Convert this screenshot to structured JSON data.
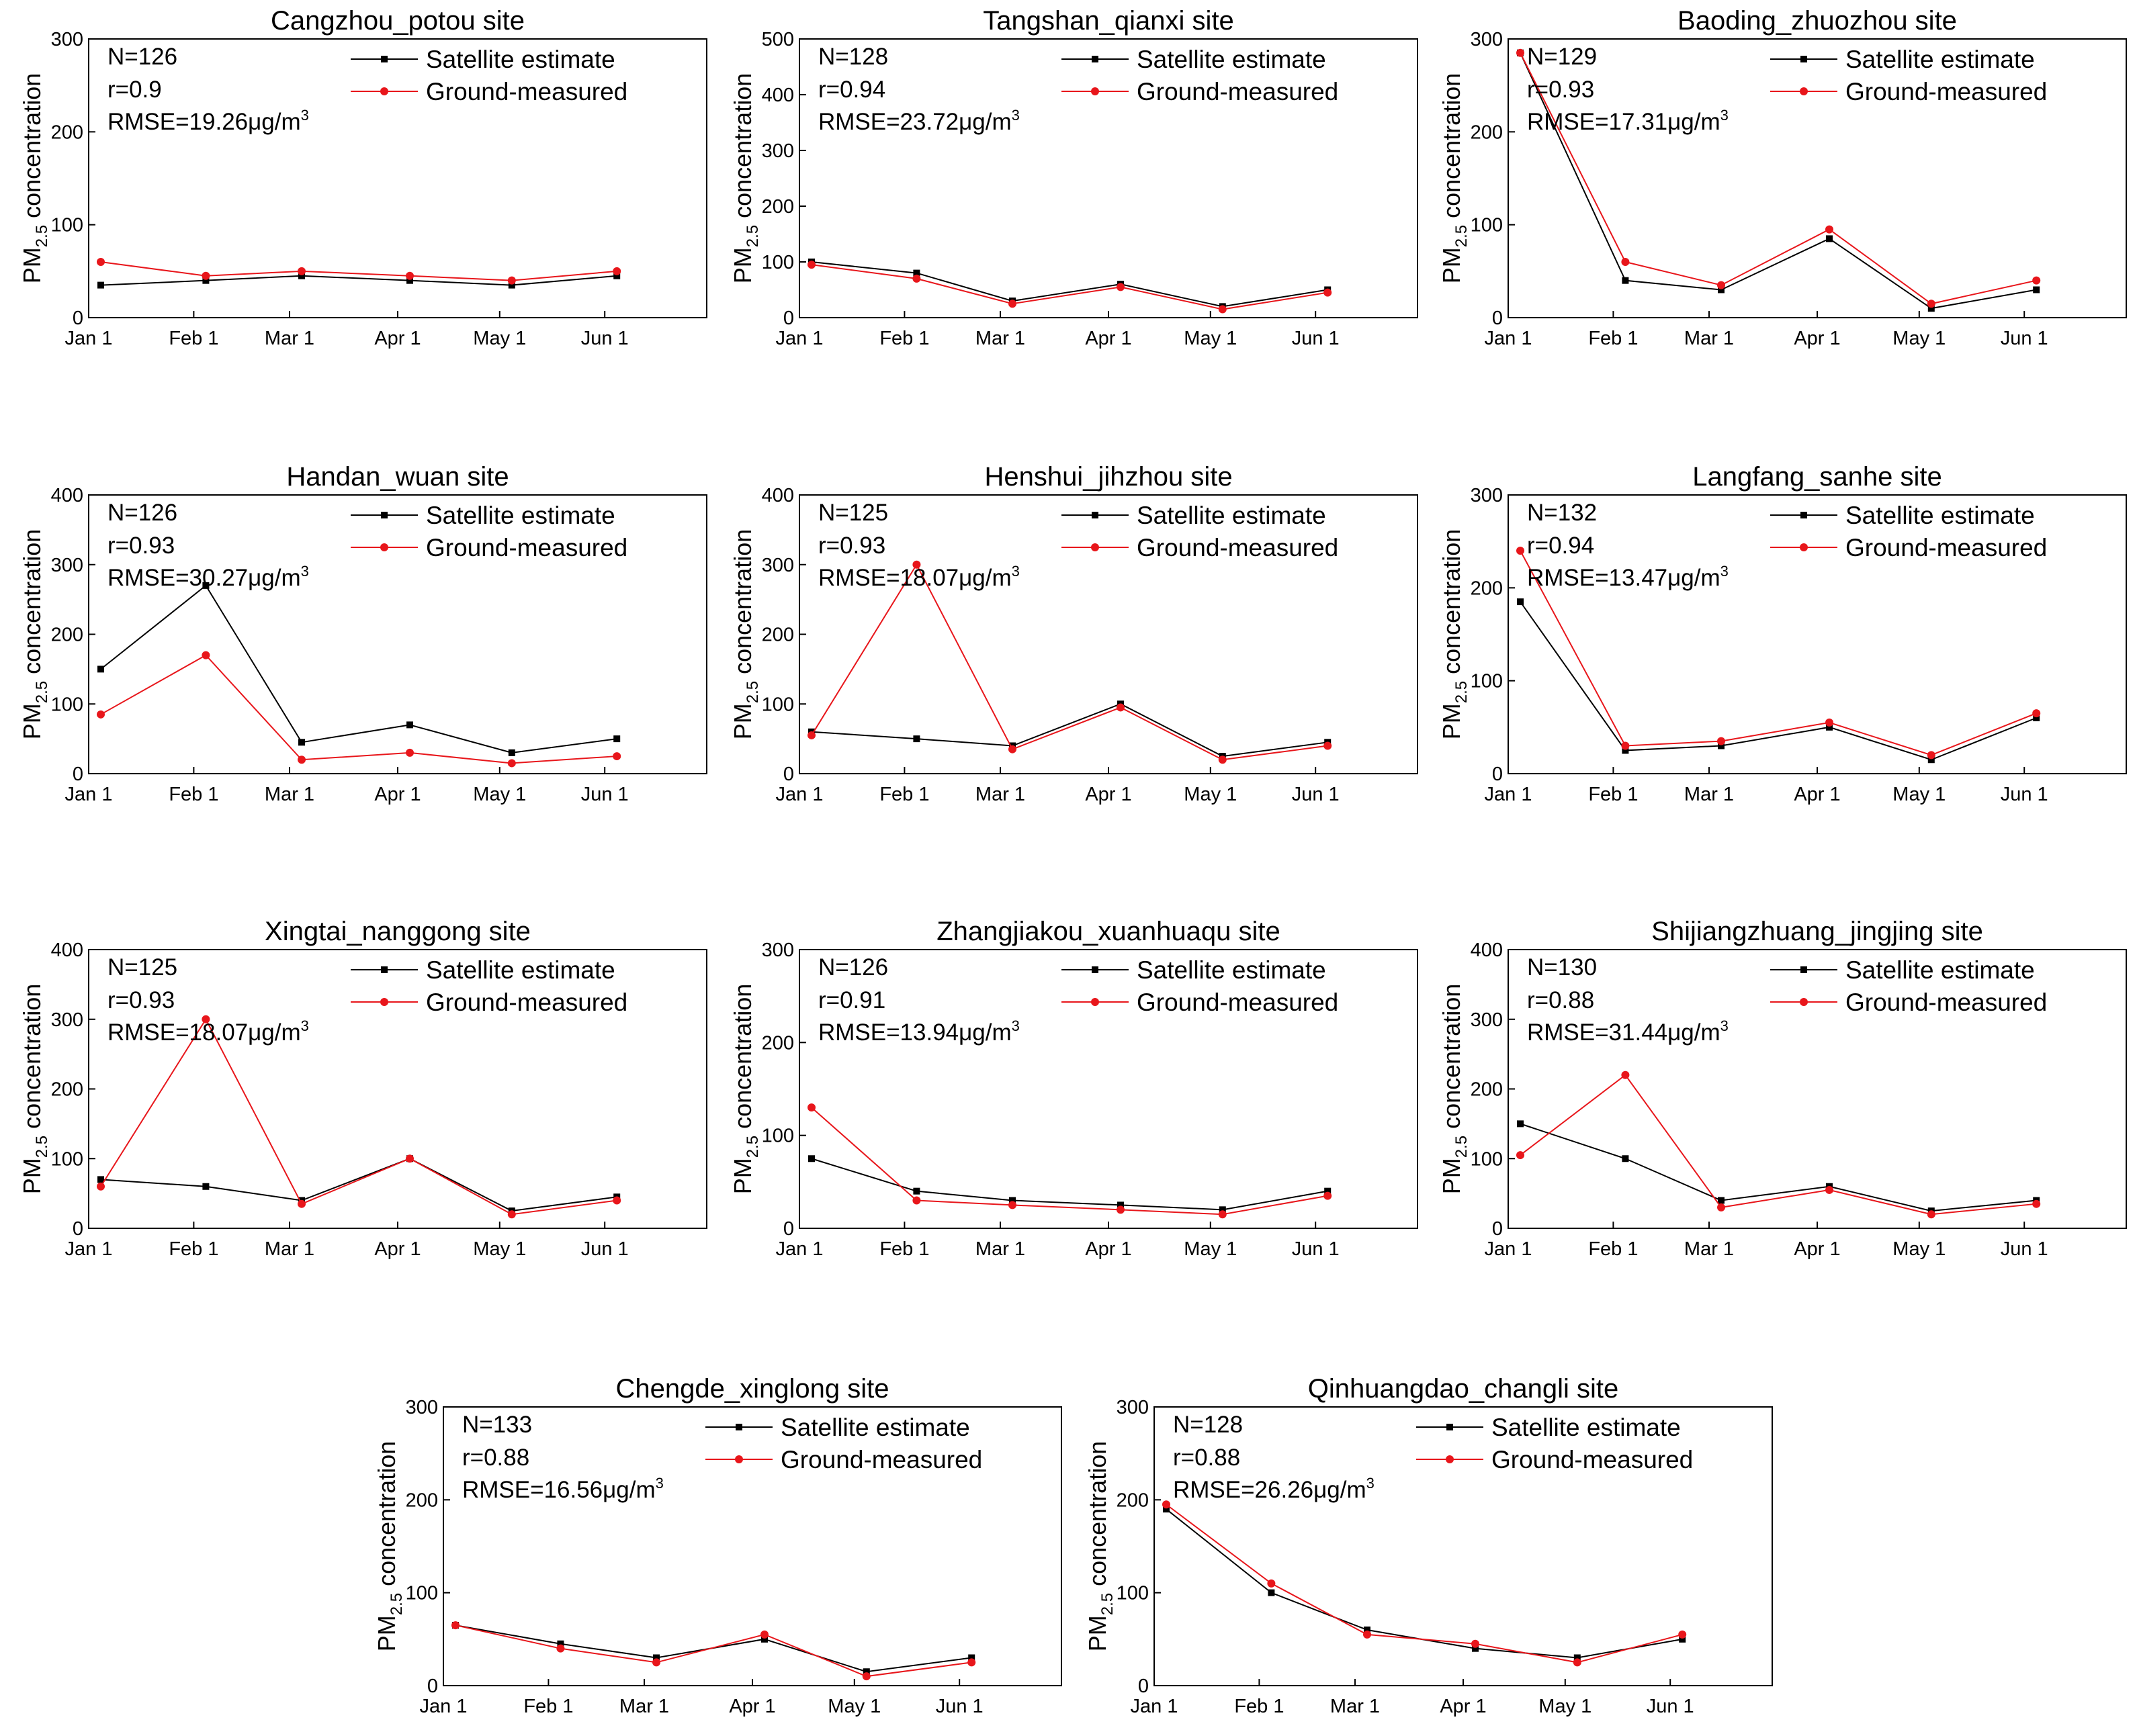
{
  "figure": {
    "ylabel_main": "PM",
    "ylabel_sub": "2.5",
    "ylabel_rest": " concentration",
    "x_ticks": [
      "Jan 1",
      "Feb 1",
      "Mar 1",
      "Apr 1",
      "May 1",
      "Jun 1"
    ],
    "legend": [
      "Satellite estimate",
      "Ground-measured"
    ],
    "colors": {
      "satellite": "#000000",
      "ground": "#e8161b"
    }
  },
  "chart_data": [
    {
      "type": "line",
      "title": "Cangzhou_potou site",
      "ylim": [
        0,
        300
      ],
      "yticks": [
        0,
        100,
        200,
        300
      ],
      "n_label": "N=126",
      "r_label": "r=0.9",
      "rmse_label": "RMSE=19.26μg/m",
      "rmse_sup": "3",
      "x": [
        "Jan 1",
        "Feb 1",
        "Mar 1",
        "Apr 1",
        "May 1",
        "Jun 1"
      ],
      "series": [
        {
          "name": "Satellite estimate",
          "values": [
            35,
            40,
            45,
            40,
            35,
            45
          ]
        },
        {
          "name": "Ground-measured",
          "values": [
            60,
            45,
            50,
            45,
            40,
            50
          ]
        }
      ]
    },
    {
      "type": "line",
      "title": "Tangshan_qianxi site",
      "ylim": [
        0,
        500
      ],
      "yticks": [
        0,
        100,
        200,
        300,
        400,
        500
      ],
      "n_label": "N=128",
      "r_label": "r=0.94",
      "rmse_label": "RMSE=23.72μg/m",
      "rmse_sup": "3",
      "x": [
        "Jan 1",
        "Feb 1",
        "Mar 1",
        "Apr 1",
        "May 1",
        "Jun 1"
      ],
      "series": [
        {
          "name": "Satellite estimate",
          "values": [
            100,
            80,
            30,
            60,
            20,
            50
          ]
        },
        {
          "name": "Ground-measured",
          "values": [
            95,
            70,
            25,
            55,
            15,
            45
          ]
        }
      ]
    },
    {
      "type": "line",
      "title": "Baoding_zhuozhou site",
      "ylim": [
        0,
        300
      ],
      "yticks": [
        0,
        100,
        200,
        300
      ],
      "n_label": "N=129",
      "r_label": "r=0.93",
      "rmse_label": "RMSE=17.31μg/m",
      "rmse_sup": "3",
      "x": [
        "Jan 1",
        "Feb 1",
        "Mar 1",
        "Apr 1",
        "May 1",
        "Jun 1"
      ],
      "series": [
        {
          "name": "Satellite estimate",
          "values": [
            285,
            40,
            30,
            85,
            10,
            30
          ]
        },
        {
          "name": "Ground-measured",
          "values": [
            285,
            60,
            35,
            95,
            15,
            40
          ]
        }
      ]
    },
    {
      "type": "line",
      "title": "Handan_wuan site",
      "ylim": [
        0,
        400
      ],
      "yticks": [
        0,
        100,
        200,
        300,
        400
      ],
      "n_label": "N=126",
      "r_label": "r=0.93",
      "rmse_label": "RMSE=30.27μg/m",
      "rmse_sup": "3",
      "x": [
        "Jan 1",
        "Feb 1",
        "Mar 1",
        "Apr 1",
        "May 1",
        "Jun 1"
      ],
      "series": [
        {
          "name": "Satellite estimate",
          "values": [
            150,
            270,
            45,
            70,
            30,
            50
          ]
        },
        {
          "name": "Ground-measured",
          "values": [
            85,
            170,
            20,
            30,
            15,
            25
          ]
        }
      ]
    },
    {
      "type": "line",
      "title": "Henshui_jihzhou site",
      "ylim": [
        0,
        400
      ],
      "yticks": [
        0,
        100,
        200,
        300,
        400
      ],
      "n_label": "N=125",
      "r_label": "r=0.93",
      "rmse_label": "RMSE=18.07μg/m",
      "rmse_sup": "3",
      "x": [
        "Jan 1",
        "Feb 1",
        "Mar 1",
        "Apr 1",
        "May 1",
        "Jun 1"
      ],
      "series": [
        {
          "name": "Satellite estimate",
          "values": [
            60,
            50,
            40,
            100,
            25,
            45
          ]
        },
        {
          "name": "Ground-measured",
          "values": [
            55,
            300,
            35,
            95,
            20,
            40
          ]
        }
      ]
    },
    {
      "type": "line",
      "title": "Langfang_sanhe site",
      "ylim": [
        0,
        300
      ],
      "yticks": [
        0,
        100,
        200,
        300
      ],
      "n_label": "N=132",
      "r_label": "r=0.94",
      "rmse_label": "RMSE=13.47μg/m",
      "rmse_sup": "3",
      "x": [
        "Jan 1",
        "Feb 1",
        "Mar 1",
        "Apr 1",
        "May 1",
        "Jun 1"
      ],
      "series": [
        {
          "name": "Satellite estimate",
          "values": [
            185,
            25,
            30,
            50,
            15,
            60
          ]
        },
        {
          "name": "Ground-measured",
          "values": [
            240,
            30,
            35,
            55,
            20,
            65
          ]
        }
      ]
    },
    {
      "type": "line",
      "title": "Xingtai_nanggong site",
      "ylim": [
        0,
        400
      ],
      "yticks": [
        0,
        100,
        200,
        300,
        400
      ],
      "n_label": "N=125",
      "r_label": "r=0.93",
      "rmse_label": "RMSE=18.07μg/m",
      "rmse_sup": "3",
      "x": [
        "Jan 1",
        "Feb 1",
        "Mar 1",
        "Apr 1",
        "May 1",
        "Jun 1"
      ],
      "series": [
        {
          "name": "Satellite estimate",
          "values": [
            70,
            60,
            40,
            100,
            25,
            45
          ]
        },
        {
          "name": "Ground-measured",
          "values": [
            60,
            300,
            35,
            100,
            20,
            40
          ]
        }
      ]
    },
    {
      "type": "line",
      "title": "Zhangjiakou_xuanhuaqu site",
      "ylim": [
        0,
        300
      ],
      "yticks": [
        0,
        100,
        200,
        300
      ],
      "n_label": "N=126",
      "r_label": "r=0.91",
      "rmse_label": "RMSE=13.94μg/m",
      "rmse_sup": "3",
      "x": [
        "Jan 1",
        "Feb 1",
        "Mar 1",
        "Apr 1",
        "May 1",
        "Jun 1"
      ],
      "series": [
        {
          "name": "Satellite estimate",
          "values": [
            75,
            40,
            30,
            25,
            20,
            40
          ]
        },
        {
          "name": "Ground-measured",
          "values": [
            130,
            30,
            25,
            20,
            15,
            35
          ]
        }
      ]
    },
    {
      "type": "line",
      "title": "Shijiangzhuang_jingjing site",
      "ylim": [
        0,
        400
      ],
      "yticks": [
        0,
        100,
        200,
        300,
        400
      ],
      "n_label": "N=130",
      "r_label": "r=0.88",
      "rmse_label": "RMSE=31.44μg/m",
      "rmse_sup": "3",
      "x": [
        "Jan 1",
        "Feb 1",
        "Mar 1",
        "Apr 1",
        "May 1",
        "Jun 1"
      ],
      "series": [
        {
          "name": "Satellite estimate",
          "values": [
            150,
            100,
            40,
            60,
            25,
            40
          ]
        },
        {
          "name": "Ground-measured",
          "values": [
            105,
            220,
            30,
            55,
            20,
            35
          ]
        }
      ]
    },
    {
      "type": "line",
      "title": "Chengde_xinglong site",
      "ylim": [
        0,
        300
      ],
      "yticks": [
        0,
        100,
        200,
        300
      ],
      "n_label": "N=133",
      "r_label": "r=0.88",
      "rmse_label": "RMSE=16.56μg/m",
      "rmse_sup": "3",
      "x": [
        "Jan 1",
        "Feb 1",
        "Mar 1",
        "Apr 1",
        "May 1",
        "Jun 1"
      ],
      "series": [
        {
          "name": "Satellite estimate",
          "values": [
            65,
            45,
            30,
            50,
            15,
            30
          ]
        },
        {
          "name": "Ground-measured",
          "values": [
            65,
            40,
            25,
            55,
            10,
            25
          ]
        }
      ]
    },
    {
      "type": "line",
      "title": "Qinhuangdao_changli site",
      "ylim": [
        0,
        300
      ],
      "yticks": [
        0,
        100,
        200,
        300
      ],
      "n_label": "N=128",
      "r_label": "r=0.88",
      "rmse_label": "RMSE=26.26μg/m",
      "rmse_sup": "3",
      "x": [
        "Jan 1",
        "Feb 1",
        "Mar 1",
        "Apr 1",
        "May 1",
        "Jun 1"
      ],
      "series": [
        {
          "name": "Satellite estimate",
          "values": [
            190,
            100,
            60,
            40,
            30,
            50
          ]
        },
        {
          "name": "Ground-measured",
          "values": [
            195,
            110,
            55,
            45,
            25,
            55
          ]
        }
      ]
    }
  ]
}
